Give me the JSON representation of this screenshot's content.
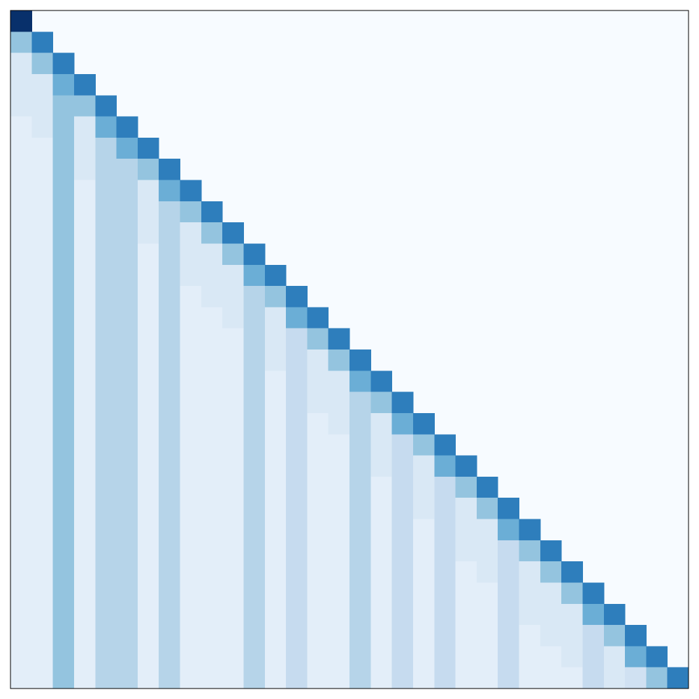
{
  "chart_data": {
    "type": "heatmap",
    "colormap": "Blues",
    "clim": [
      0,
      1
    ],
    "values": [
      [
        1
      ],
      [
        0.4,
        0.7
      ],
      [
        0.15,
        0.4,
        0.7
      ],
      [
        0.15,
        0.15,
        0.5,
        0.7
      ],
      [
        0.15,
        0.15,
        0.4,
        0.4,
        0.7
      ],
      [
        0.1,
        0.15,
        0.4,
        0.15,
        0.5,
        0.7
      ],
      [
        0.1,
        0.1,
        0.4,
        0.15,
        0.3,
        0.5,
        0.7
      ],
      [
        0.1,
        0.1,
        0.4,
        0.15,
        0.3,
        0.3,
        0.4,
        0.7
      ],
      [
        0.1,
        0.1,
        0.4,
        0.1,
        0.3,
        0.3,
        0.15,
        0.5,
        0.7
      ],
      [
        0.1,
        0.1,
        0.4,
        0.1,
        0.3,
        0.3,
        0.15,
        0.3,
        0.4,
        0.7
      ],
      [
        0.1,
        0.1,
        0.4,
        0.1,
        0.3,
        0.3,
        0.15,
        0.3,
        0.15,
        0.4,
        0.7
      ],
      [
        0.1,
        0.1,
        0.4,
        0.1,
        0.3,
        0.3,
        0.1,
        0.3,
        0.15,
        0.15,
        0.4,
        0.7
      ],
      [
        0.1,
        0.1,
        0.4,
        0.1,
        0.3,
        0.3,
        0.1,
        0.3,
        0.15,
        0.15,
        0.15,
        0.5,
        0.7
      ],
      [
        0.1,
        0.1,
        0.4,
        0.1,
        0.3,
        0.3,
        0.1,
        0.3,
        0.1,
        0.15,
        0.15,
        0.3,
        0.4,
        0.7
      ],
      [
        0.1,
        0.1,
        0.4,
        0.1,
        0.3,
        0.3,
        0.1,
        0.3,
        0.1,
        0.1,
        0.15,
        0.3,
        0.15,
        0.5,
        0.7
      ],
      [
        0.1,
        0.1,
        0.4,
        0.1,
        0.3,
        0.3,
        0.1,
        0.3,
        0.1,
        0.1,
        0.1,
        0.3,
        0.15,
        0.25,
        0.4,
        0.7
      ],
      [
        0.1,
        0.1,
        0.4,
        0.1,
        0.3,
        0.3,
        0.1,
        0.3,
        0.1,
        0.1,
        0.1,
        0.3,
        0.15,
        0.25,
        0.15,
        0.4,
        0.7
      ],
      [
        0.1,
        0.1,
        0.4,
        0.1,
        0.3,
        0.3,
        0.1,
        0.3,
        0.1,
        0.1,
        0.1,
        0.3,
        0.1,
        0.25,
        0.15,
        0.15,
        0.5,
        0.7
      ],
      [
        0.1,
        0.1,
        0.4,
        0.1,
        0.3,
        0.3,
        0.1,
        0.3,
        0.1,
        0.1,
        0.1,
        0.3,
        0.1,
        0.25,
        0.15,
        0.15,
        0.3,
        0.4,
        0.7
      ],
      [
        0.1,
        0.1,
        0.4,
        0.1,
        0.3,
        0.3,
        0.1,
        0.3,
        0.1,
        0.1,
        0.1,
        0.3,
        0.1,
        0.25,
        0.1,
        0.15,
        0.3,
        0.15,
        0.5,
        0.7
      ],
      [
        0.1,
        0.1,
        0.4,
        0.1,
        0.3,
        0.3,
        0.1,
        0.3,
        0.1,
        0.1,
        0.1,
        0.3,
        0.1,
        0.25,
        0.1,
        0.1,
        0.3,
        0.15,
        0.25,
        0.4,
        0.7
      ],
      [
        0.1,
        0.1,
        0.4,
        0.1,
        0.3,
        0.3,
        0.1,
        0.3,
        0.1,
        0.1,
        0.1,
        0.3,
        0.1,
        0.25,
        0.1,
        0.1,
        0.3,
        0.15,
        0.25,
        0.15,
        0.5,
        0.7
      ],
      [
        0.1,
        0.1,
        0.4,
        0.1,
        0.3,
        0.3,
        0.1,
        0.3,
        0.1,
        0.1,
        0.1,
        0.3,
        0.1,
        0.25,
        0.1,
        0.1,
        0.3,
        0.1,
        0.25,
        0.15,
        0.25,
        0.4,
        0.7
      ],
      [
        0.1,
        0.1,
        0.4,
        0.1,
        0.3,
        0.3,
        0.1,
        0.3,
        0.1,
        0.1,
        0.1,
        0.3,
        0.1,
        0.25,
        0.1,
        0.1,
        0.3,
        0.1,
        0.25,
        0.15,
        0.25,
        0.15,
        0.4,
        0.7
      ],
      [
        0.1,
        0.1,
        0.4,
        0.1,
        0.3,
        0.3,
        0.1,
        0.3,
        0.1,
        0.1,
        0.1,
        0.3,
        0.1,
        0.25,
        0.1,
        0.1,
        0.3,
        0.1,
        0.25,
        0.1,
        0.25,
        0.15,
        0.15,
        0.5,
        0.7
      ],
      [
        0.1,
        0.1,
        0.4,
        0.1,
        0.3,
        0.3,
        0.1,
        0.3,
        0.1,
        0.1,
        0.1,
        0.3,
        0.1,
        0.25,
        0.1,
        0.1,
        0.3,
        0.1,
        0.25,
        0.1,
        0.25,
        0.15,
        0.15,
        0.25,
        0.4,
        0.7
      ],
      [
        0.1,
        0.1,
        0.4,
        0.1,
        0.3,
        0.3,
        0.1,
        0.3,
        0.1,
        0.1,
        0.1,
        0.3,
        0.1,
        0.25,
        0.1,
        0.1,
        0.3,
        0.1,
        0.25,
        0.1,
        0.25,
        0.1,
        0.15,
        0.25,
        0.15,
        0.4,
        0.7
      ],
      [
        0.1,
        0.1,
        0.4,
        0.1,
        0.3,
        0.3,
        0.1,
        0.3,
        0.1,
        0.1,
        0.1,
        0.3,
        0.1,
        0.25,
        0.1,
        0.1,
        0.3,
        0.1,
        0.25,
        0.1,
        0.25,
        0.1,
        0.1,
        0.25,
        0.15,
        0.15,
        0.4,
        0.7
      ],
      [
        0.1,
        0.1,
        0.4,
        0.1,
        0.3,
        0.3,
        0.1,
        0.3,
        0.1,
        0.1,
        0.1,
        0.3,
        0.1,
        0.25,
        0.1,
        0.1,
        0.3,
        0.1,
        0.25,
        0.1,
        0.25,
        0.1,
        0.1,
        0.25,
        0.15,
        0.15,
        0.15,
        0.5,
        0.7
      ],
      [
        0.1,
        0.1,
        0.4,
        0.1,
        0.3,
        0.3,
        0.1,
        0.3,
        0.1,
        0.1,
        0.1,
        0.3,
        0.1,
        0.25,
        0.1,
        0.1,
        0.3,
        0.1,
        0.25,
        0.1,
        0.25,
        0.1,
        0.1,
        0.25,
        0.1,
        0.15,
        0.15,
        0.25,
        0.4,
        0.7
      ],
      [
        0.1,
        0.1,
        0.4,
        0.1,
        0.3,
        0.3,
        0.1,
        0.3,
        0.1,
        0.1,
        0.1,
        0.3,
        0.1,
        0.25,
        0.1,
        0.1,
        0.3,
        0.1,
        0.25,
        0.1,
        0.25,
        0.1,
        0.1,
        0.25,
        0.1,
        0.1,
        0.15,
        0.25,
        0.15,
        0.5,
        0.7
      ],
      [
        0.1,
        0.1,
        0.4,
        0.1,
        0.3,
        0.3,
        0.1,
        0.3,
        0.1,
        0.1,
        0.1,
        0.3,
        0.1,
        0.25,
        0.1,
        0.1,
        0.3,
        0.1,
        0.25,
        0.1,
        0.25,
        0.1,
        0.1,
        0.25,
        0.1,
        0.1,
        0.1,
        0.25,
        0.15,
        0.2,
        0.4,
        0.7
      ]
    ]
  }
}
